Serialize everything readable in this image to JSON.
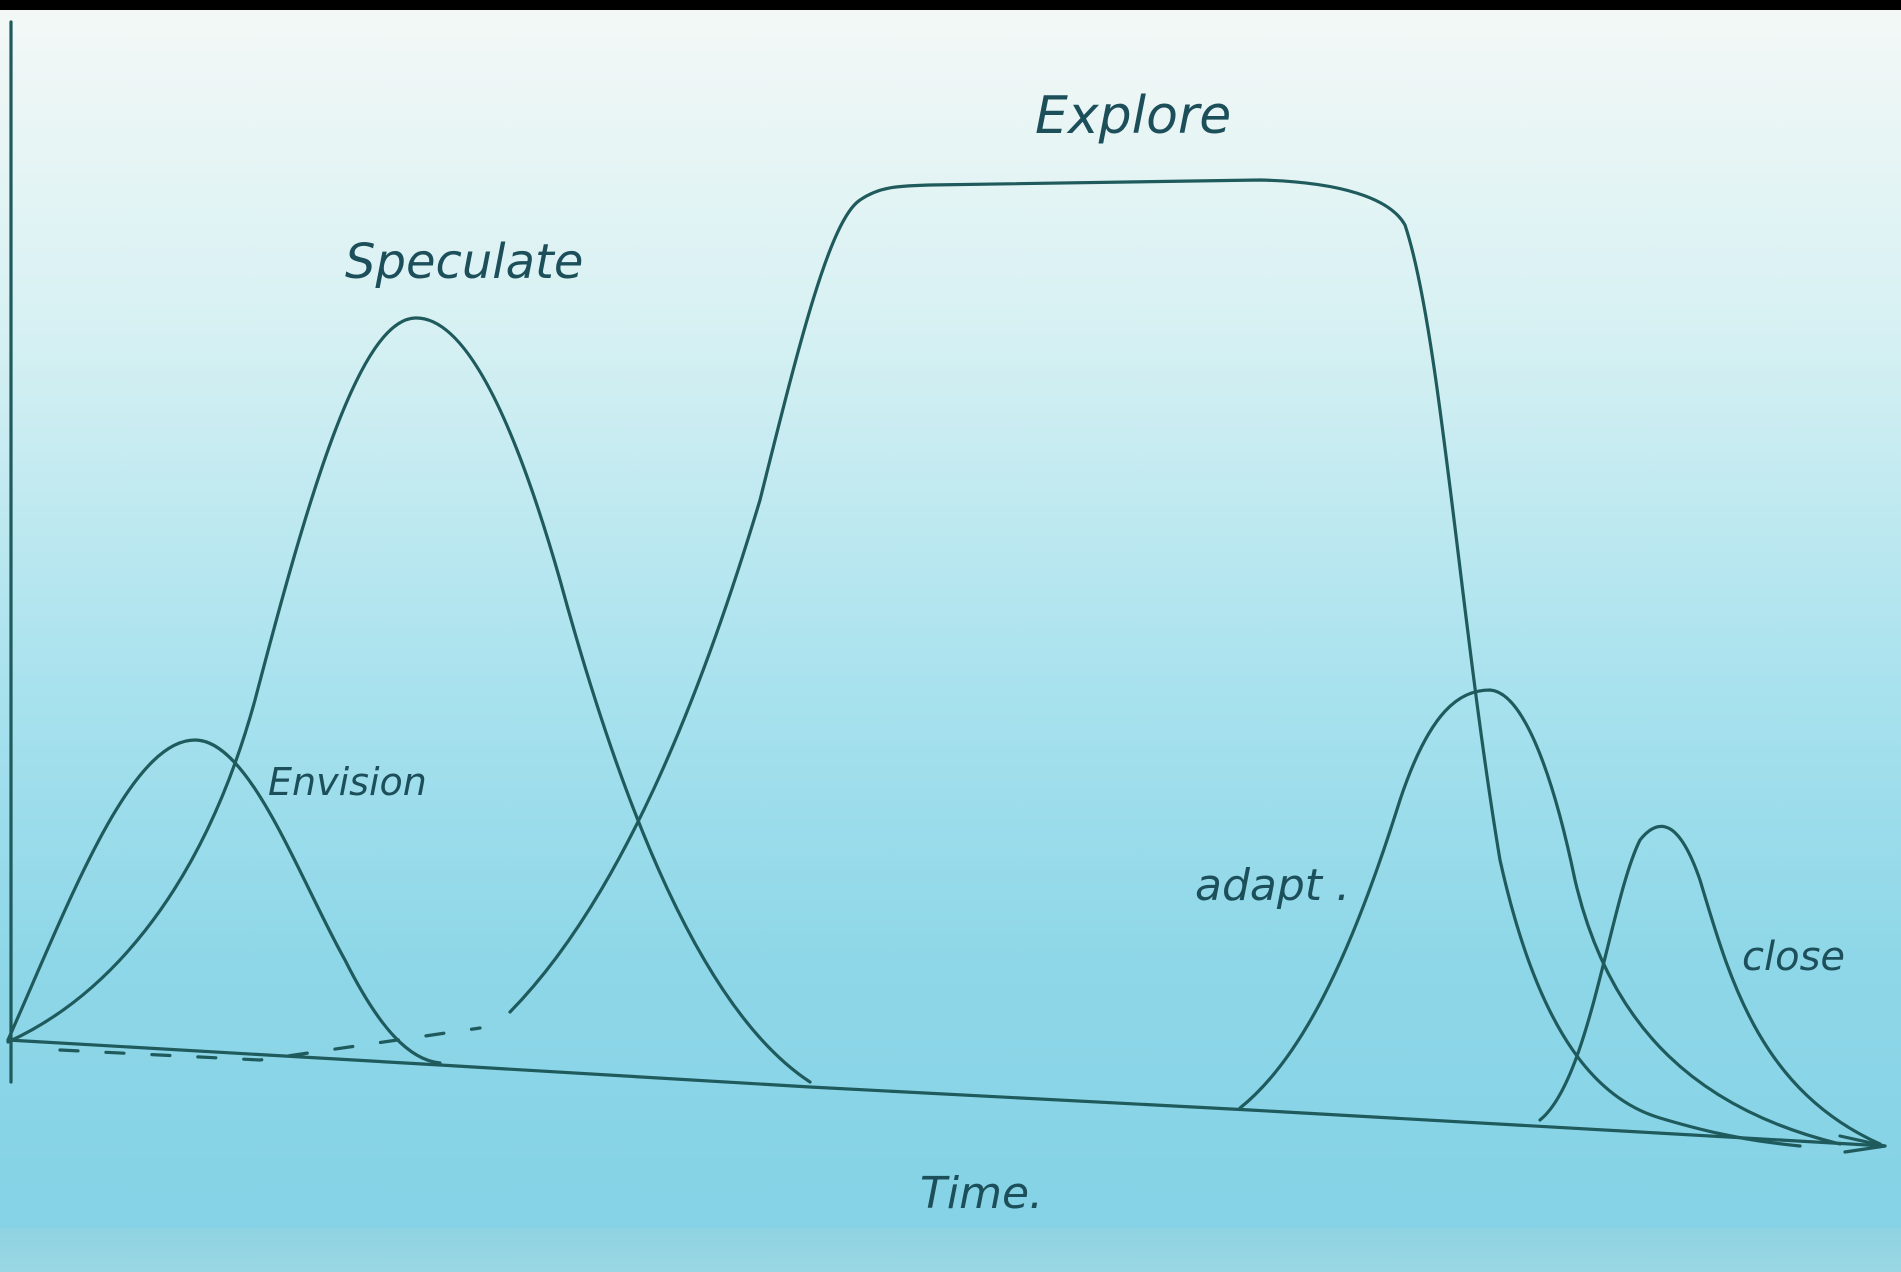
{
  "diagram": {
    "phases": [
      {
        "id": "envision",
        "label": "Envision"
      },
      {
        "id": "speculate",
        "label": "Speculate"
      },
      {
        "id": "explore",
        "label": "Explore"
      },
      {
        "id": "adapt",
        "label": "adapt ."
      },
      {
        "id": "close",
        "label": "close"
      }
    ],
    "x_axis_label": "Time.",
    "colors": {
      "ink": "#1f5a5c",
      "board_top": "#f3f8f6",
      "board_bottom": "#85d2e6"
    }
  }
}
